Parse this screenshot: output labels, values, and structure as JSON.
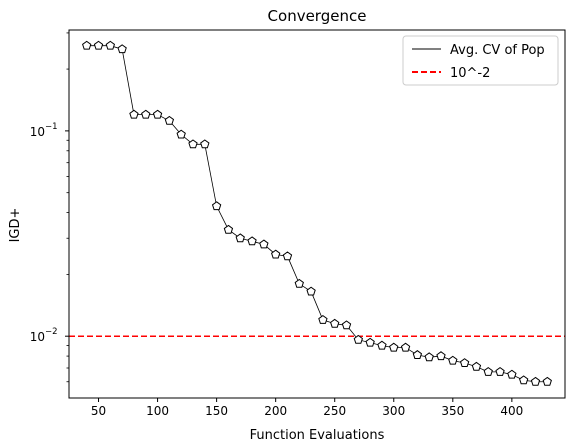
{
  "chart_data": {
    "type": "line",
    "title": "Convergence",
    "xlabel": "Function Evaluations",
    "ylabel": "IGD+",
    "xlim": [
      25,
      445
    ],
    "ylim": [
      0.005,
      0.31
    ],
    "yscale": "log",
    "grid": false,
    "legend_position": "top-right",
    "x_ticks": [
      50,
      100,
      150,
      200,
      250,
      300,
      350,
      400
    ],
    "x_tick_labels": [
      "50",
      "100",
      "150",
      "200",
      "250",
      "300",
      "350",
      "400"
    ],
    "y_major_ticks": [
      0.01,
      0.1
    ],
    "y_major_tick_labels": [
      "10",
      "10"
    ],
    "y_major_tick_exponents": [
      "−2",
      "−1"
    ],
    "y_minor_ticks": [
      0.006,
      0.007,
      0.008,
      0.009,
      0.02,
      0.03,
      0.04,
      0.05,
      0.06,
      0.07,
      0.08,
      0.09,
      0.2,
      0.3
    ],
    "series": [
      {
        "name": "Avg. CV of Pop",
        "color": "#000000",
        "marker": "pentagon",
        "x": [
          40,
          50,
          60,
          70,
          80,
          90,
          100,
          110,
          120,
          130,
          140,
          150,
          160,
          170,
          180,
          190,
          200,
          210,
          220,
          230,
          240,
          250,
          260,
          270,
          280,
          290,
          300,
          310,
          320,
          330,
          340,
          350,
          360,
          370,
          380,
          390,
          400,
          410,
          420,
          430
        ],
        "y": [
          0.26,
          0.26,
          0.26,
          0.25,
          0.12,
          0.12,
          0.12,
          0.112,
          0.096,
          0.086,
          0.086,
          0.043,
          0.033,
          0.03,
          0.029,
          0.028,
          0.025,
          0.0245,
          0.018,
          0.0165,
          0.012,
          0.0115,
          0.0113,
          0.0096,
          0.0093,
          0.009,
          0.0088,
          0.0088,
          0.0081,
          0.0079,
          0.008,
          0.0076,
          0.0074,
          0.0071,
          0.0067,
          0.0067,
          0.0065,
          0.0061,
          0.006,
          0.006
        ]
      }
    ],
    "reference_line": {
      "name": "10^-2",
      "y": 0.01,
      "color": "#ff0000",
      "style": "dashed"
    }
  }
}
